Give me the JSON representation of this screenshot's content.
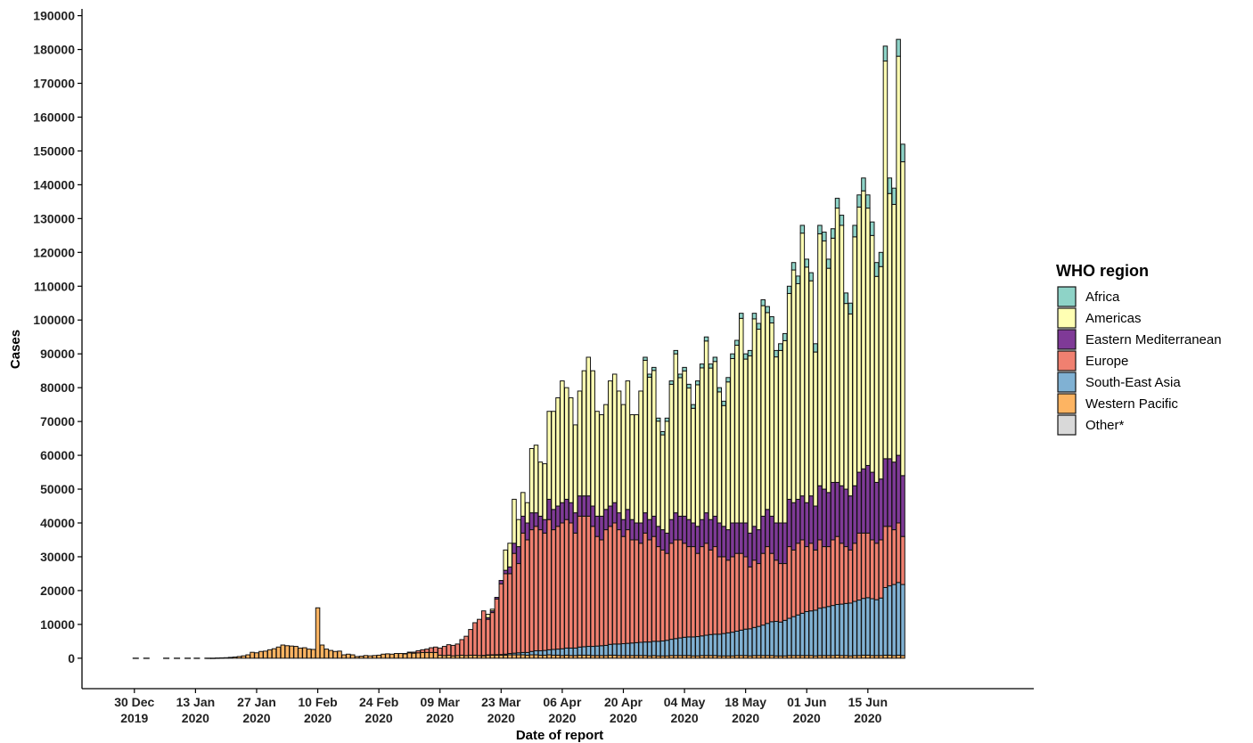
{
  "chart_data": {
    "type": "bar",
    "stacked": true,
    "xlabel": "Date of report",
    "ylabel": "Cases",
    "ylim": [
      -9000,
      192000
    ],
    "y_ticks": [
      0,
      10000,
      20000,
      30000,
      40000,
      50000,
      60000,
      70000,
      80000,
      90000,
      100000,
      110000,
      120000,
      130000,
      140000,
      150000,
      160000,
      170000,
      180000,
      190000
    ],
    "x_range_days": [
      -12,
      206
    ],
    "x_ticks": [
      {
        "day": 0,
        "line1": "30 Dec",
        "line2": "2019"
      },
      {
        "day": 14,
        "line1": "13 Jan",
        "line2": "2020"
      },
      {
        "day": 28,
        "line1": "27 Jan",
        "line2": "2020"
      },
      {
        "day": 42,
        "line1": "10 Feb",
        "line2": "2020"
      },
      {
        "day": 56,
        "line1": "24 Feb",
        "line2": "2020"
      },
      {
        "day": 70,
        "line1": "09 Mar",
        "line2": "2020"
      },
      {
        "day": 84,
        "line1": "23 Mar",
        "line2": "2020"
      },
      {
        "day": 98,
        "line1": "06 Apr",
        "line2": "2020"
      },
      {
        "day": 112,
        "line1": "20 Apr",
        "line2": "2020"
      },
      {
        "day": 126,
        "line1": "04 May",
        "line2": "2020"
      },
      {
        "day": 140,
        "line1": "18 May",
        "line2": "2020"
      },
      {
        "day": 154,
        "line1": "01 Jun",
        "line2": "2020"
      },
      {
        "day": 168,
        "line1": "15 Jun",
        "line2": "2020"
      }
    ],
    "legend": {
      "title": "WHO region",
      "position": "right",
      "entries": [
        {
          "name": "Africa",
          "color": "#8ED3C7"
        },
        {
          "name": "Americas",
          "color": "#FFFFB3"
        },
        {
          "name": "Eastern Mediterranean",
          "color": "#7F3A97"
        },
        {
          "name": "Europe",
          "color": "#F08070"
        },
        {
          "name": "South-East Asia",
          "color": "#80B1D3"
        },
        {
          "name": "Western Pacific",
          "color": "#FDB462"
        },
        {
          "name": "Other*",
          "color": "#D9D9D9"
        }
      ]
    },
    "series_order": [
      "Western Pacific",
      "South-East Asia",
      "Europe",
      "Eastern Mediterranean",
      "Americas",
      "Africa"
    ],
    "dash_segments": [
      [
        0,
        4
      ],
      [
        7,
        13
      ],
      [
        14,
        17
      ]
    ],
    "early_days": {
      "days": [
        17,
        18,
        19,
        20,
        21,
        22,
        23,
        24,
        25,
        26,
        27,
        28,
        29,
        30,
        31,
        32,
        33,
        34,
        35,
        36,
        37,
        38,
        39,
        40,
        41,
        42,
        43,
        44,
        45,
        46,
        47,
        48,
        49,
        50,
        51,
        52,
        53,
        54,
        55,
        56,
        57,
        58,
        59,
        60,
        61,
        62,
        63,
        64,
        65,
        66,
        67,
        68,
        69
      ],
      "Western Pacific": [
        20,
        30,
        80,
        110,
        150,
        250,
        350,
        500,
        700,
        1000,
        1750,
        1600,
        2000,
        2100,
        2500,
        2800,
        3300,
        3900,
        3700,
        3600,
        3500,
        3000,
        3100,
        2700,
        2600,
        14900,
        3900,
        2700,
        2300,
        2000,
        2100,
        1000,
        1200,
        1000,
        500,
        600,
        800,
        700,
        800,
        900,
        1200,
        1300,
        1200,
        1400,
        1400,
        1300,
        1600,
        1500,
        1600,
        1700,
        1700,
        1700,
        1700
      ],
      "Europe": [
        0,
        0,
        0,
        0,
        0,
        0,
        0,
        0,
        0,
        0,
        0,
        0,
        0,
        0,
        0,
        0,
        0,
        0,
        0,
        0,
        0,
        0,
        0,
        0,
        0,
        0,
        0,
        0,
        0,
        0,
        0,
        0,
        0,
        0,
        0,
        0,
        0,
        0,
        0,
        0,
        0,
        0,
        0,
        0,
        0,
        100,
        200,
        300,
        600,
        800,
        1000,
        1400,
        1600
      ]
    },
    "main_days": {
      "start_day": 70,
      "total": [
        3000,
        3500,
        4000,
        3800,
        4200,
        5500,
        6500,
        8500,
        10500,
        11500,
        14000,
        13000,
        14500,
        18000,
        23000,
        32000,
        34000,
        47000,
        41000,
        49000,
        46000,
        62000,
        63000,
        58000,
        57500,
        73000,
        73000,
        77000,
        82000,
        80000,
        77000,
        69000,
        79000,
        85000,
        89000,
        85000,
        73000,
        72000,
        75000,
        82000,
        84000,
        79000,
        75000,
        82000,
        72000,
        72000,
        79000,
        89000,
        84000,
        86000,
        71000,
        67000,
        71000,
        82000,
        91000,
        84000,
        86000,
        81000,
        75000,
        82000,
        87000,
        95000,
        87000,
        89000,
        80000,
        76000,
        83000,
        90000,
        94000,
        102000,
        90000,
        91000,
        102000,
        99000,
        106000,
        104000,
        101000,
        91000,
        93000,
        96000,
        110000,
        117000,
        113000,
        128000,
        118000,
        114000,
        93000,
        128000,
        126000,
        118000,
        127000,
        136000,
        131000,
        108000,
        105000,
        128000,
        137000,
        142000,
        137000,
        129000,
        117000,
        120000,
        181000,
        142000,
        139000,
        183000,
        152000
      ],
      "Africa": [
        0,
        0,
        0,
        0,
        0,
        0,
        0,
        0,
        0,
        0,
        0,
        0,
        0,
        0,
        0,
        0,
        0,
        0,
        0,
        0,
        0,
        0,
        0,
        0,
        0,
        0,
        0,
        0,
        0,
        0,
        0,
        0,
        0,
        0,
        0,
        0,
        0,
        0,
        0,
        0,
        0,
        0,
        0,
        0,
        0,
        0,
        0,
        900,
        900,
        900,
        900,
        950,
        950,
        1000,
        1000,
        1050,
        1050,
        1100,
        1100,
        1150,
        1150,
        1200,
        1200,
        1250,
        1250,
        1300,
        1300,
        1400,
        1450,
        1500,
        1550,
        1600,
        1650,
        1700,
        1750,
        1800,
        1850,
        1900,
        2000,
        2100,
        2150,
        2200,
        2250,
        2300,
        2350,
        2400,
        2450,
        2500,
        2600,
        2700,
        2800,
        2900,
        3000,
        3100,
        3200,
        3400,
        3600,
        3800,
        3900,
        4000,
        4100,
        4200,
        4400,
        4600,
        4800,
        5000,
        5200
      ],
      "Eastern Mediterranean": [
        0,
        0,
        0,
        0,
        0,
        0,
        0,
        0,
        0,
        0,
        0,
        0,
        0,
        0,
        0,
        0,
        0,
        0,
        0,
        0,
        0,
        0,
        0,
        0,
        0,
        0,
        0,
        0,
        0,
        0,
        0,
        0,
        0,
        0,
        0,
        0,
        0,
        0,
        0,
        0,
        0,
        0,
        0,
        0,
        0,
        0,
        0,
        0,
        0,
        0,
        0,
        0,
        0,
        0,
        0,
        0,
        0,
        0,
        0,
        0,
        0,
        0,
        0,
        0,
        0,
        0,
        0,
        0,
        0,
        0,
        0,
        0,
        0,
        0,
        0,
        0,
        0,
        0,
        0,
        0,
        0,
        0,
        0,
        0,
        0,
        0,
        0,
        0,
        0,
        0,
        0,
        0,
        0,
        0,
        0,
        0,
        0,
        0,
        0,
        0,
        0,
        0,
        0,
        0,
        0,
        0,
        0
      ],
      "Europe_plus_below": [
        3000,
        3500,
        4000,
        3800,
        4200,
        5500,
        6500,
        8500,
        10500,
        11500,
        14000,
        11500,
        13500,
        17500,
        22000,
        25000,
        25000,
        31000,
        28000,
        37000,
        35000,
        38000,
        39000,
        38000,
        37000,
        41000,
        38000,
        39000,
        40000,
        41000,
        40000,
        37000,
        42000,
        42000,
        42000,
        39000,
        36000,
        35000,
        38000,
        39000,
        40000,
        38000,
        36000,
        38000,
        35000,
        35000,
        34000,
        37000,
        35000,
        36000,
        33000,
        32000,
        31000,
        34000,
        35000,
        35000,
        34000,
        33000,
        33000,
        31000,
        33000,
        34000,
        32000,
        33000,
        30000,
        30000,
        29000,
        30000,
        31000,
        31000,
        30000,
        27000,
        29000,
        28000,
        31000,
        33000,
        31000,
        29000,
        28000,
        28000,
        33000,
        32000,
        34000,
        35000,
        33000,
        34000,
        32000,
        35000,
        33000,
        33000,
        35000,
        36000,
        34000,
        33000,
        32000,
        34000,
        37000,
        37000,
        37000,
        35000,
        34000,
        35000,
        39000,
        39000,
        38000,
        40000,
        36000
      ],
      "Eastern_plus_below": [
        3000,
        3500,
        4000,
        3800,
        4200,
        5500,
        6500,
        8500,
        10500,
        11500,
        14000,
        12000,
        14000,
        18000,
        23000,
        26000,
        27000,
        34000,
        33000,
        42000,
        40000,
        43000,
        43000,
        42000,
        41000,
        47000,
        44000,
        45000,
        46000,
        47000,
        46000,
        43000,
        48000,
        48000,
        48000,
        45000,
        42000,
        42000,
        44000,
        45000,
        46000,
        43000,
        41000,
        44000,
        41000,
        40000,
        40000,
        43000,
        41000,
        42000,
        39000,
        38000,
        37000,
        41000,
        43000,
        42000,
        42000,
        41000,
        40000,
        39000,
        41000,
        43000,
        41000,
        42000,
        40000,
        39000,
        38000,
        40000,
        40000,
        40000,
        40000,
        37000,
        39000,
        38000,
        42000,
        44000,
        42000,
        40000,
        40000,
        40000,
        47000,
        46000,
        47000,
        48000,
        46000,
        48000,
        45000,
        51000,
        50000,
        49000,
        52000,
        52000,
        51000,
        50000,
        48000,
        51000,
        55000,
        56000,
        57000,
        55000,
        52000,
        53000,
        59000,
        59000,
        58000,
        60000,
        54000
      ],
      "South-East Asia": [
        0,
        0,
        0,
        0,
        0,
        0,
        0,
        0,
        0,
        0,
        50,
        80,
        120,
        150,
        200,
        300,
        400,
        500,
        600,
        700,
        800,
        1000,
        1200,
        1300,
        1400,
        1500,
        1700,
        1800,
        2000,
        2100,
        2200,
        2200,
        2400,
        2500,
        2600,
        2700,
        2800,
        2900,
        3000,
        3200,
        3300,
        3400,
        3500,
        3600,
        3700,
        3800,
        3900,
        4000,
        4100,
        4200,
        4300,
        4400,
        4600,
        4800,
        5000,
        5200,
        5400,
        5500,
        5600,
        5700,
        5800,
        6000,
        6200,
        6300,
        6400,
        6600,
        6800,
        7000,
        7200,
        7500,
        7800,
        8000,
        8300,
        8600,
        9000,
        9500,
        10000,
        10200,
        10000,
        10500,
        11000,
        11500,
        12000,
        12500,
        13000,
        13200,
        13500,
        14000,
        14200,
        14500,
        14800,
        15000,
        15200,
        15400,
        15600,
        16000,
        16400,
        16800,
        17000,
        16800,
        16500,
        17000,
        20000,
        20500,
        21000,
        21500,
        21000
      ],
      "Western Pacific": [
        900,
        800,
        900,
        700,
        800,
        900,
        800,
        900,
        900,
        800,
        800,
        900,
        900,
        900,
        900,
        900,
        1000,
        1000,
        1000,
        1000,
        900,
        1000,
        1000,
        900,
        900,
        1000,
        900,
        900,
        800,
        900,
        800,
        800,
        900,
        900,
        900,
        800,
        800,
        800,
        800,
        900,
        900,
        800,
        800,
        800,
        800,
        800,
        800,
        800,
        700,
        800,
        700,
        700,
        700,
        800,
        800,
        800,
        800,
        800,
        700,
        700,
        800,
        800,
        800,
        800,
        700,
        700,
        700,
        700,
        800,
        800,
        800,
        700,
        800,
        800,
        800,
        800,
        800,
        700,
        700,
        700,
        800,
        800,
        800,
        800,
        800,
        800,
        700,
        800,
        800,
        800,
        800,
        900,
        800,
        800,
        700,
        800,
        800,
        900,
        900,
        800,
        800,
        800,
        900,
        900,
        800,
        900,
        800
      ]
    }
  }
}
